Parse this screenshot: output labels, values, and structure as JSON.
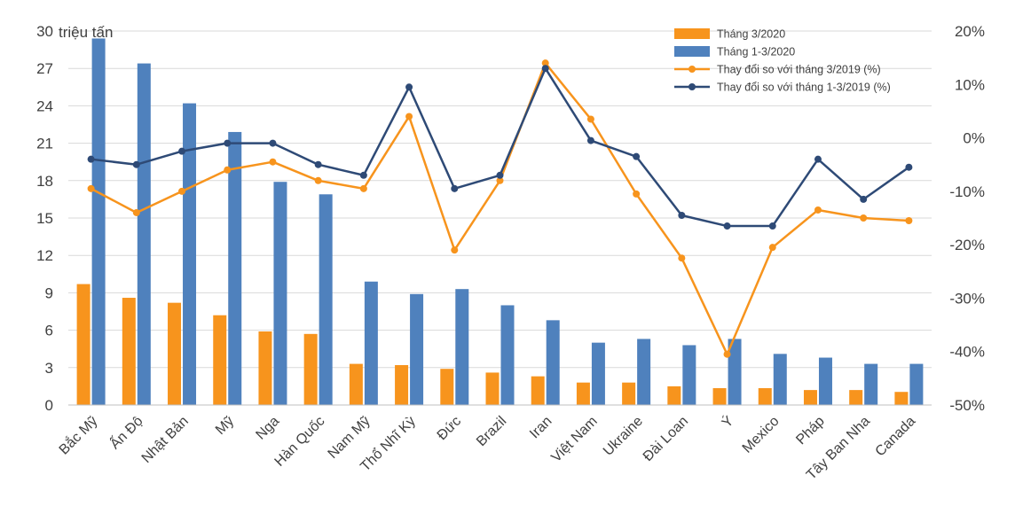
{
  "chart_data": {
    "type": "bar",
    "title": "",
    "y_unit_label": "triệu tấn",
    "categories": [
      "Bắc Mỹ",
      "Ấn Độ",
      "Nhật Bản",
      "Mỹ",
      "Nga",
      "Hàn Quốc",
      "Nam Mỹ",
      "Thổ Nhĩ Kỳ",
      "Đức",
      "Brazil",
      "Iran",
      "Việt Nam",
      "Ukraine",
      "Đài Loan",
      "Ý",
      "Mexico",
      "Pháp",
      "Tây Ban Nha",
      "Canada"
    ],
    "y_left": {
      "min": 0,
      "max": 30,
      "ticks": [
        0,
        3,
        6,
        9,
        12,
        15,
        18,
        21,
        24,
        27,
        30
      ]
    },
    "y_right": {
      "min": -50,
      "max": 20,
      "ticks": [
        -50,
        -40,
        -30,
        -20,
        -10,
        0,
        10,
        20
      ],
      "tick_labels": [
        "-50%",
        "-40%",
        "-30%",
        "-20%",
        "-10%",
        "0%",
        "10%",
        "20%"
      ]
    },
    "grid": true,
    "legend_position": "top-right",
    "series": [
      {
        "name": "Tháng 3/2020",
        "type": "bar",
        "axis": "left",
        "color": "#f7941d",
        "values": [
          9.7,
          8.6,
          8.2,
          7.2,
          5.9,
          5.7,
          3.3,
          3.2,
          2.9,
          2.6,
          2.3,
          1.8,
          1.8,
          1.5,
          1.35,
          1.35,
          1.2,
          1.2,
          1.05
        ]
      },
      {
        "name": "Tháng 1-3/2020",
        "type": "bar",
        "axis": "left",
        "color": "#4f81bd",
        "values": [
          29.4,
          27.4,
          24.2,
          21.9,
          17.9,
          16.9,
          9.9,
          8.9,
          9.3,
          8.0,
          6.8,
          5.0,
          5.3,
          4.8,
          5.3,
          4.1,
          3.8,
          3.3,
          3.3
        ]
      },
      {
        "name": "Thay đổi so với tháng 3/2019 (%)",
        "type": "line",
        "axis": "right",
        "color": "#f7941d",
        "values": [
          -9.5,
          -14,
          -10,
          -6,
          -4.5,
          -8,
          -9.5,
          4,
          -21,
          -8,
          14,
          3.5,
          -10.5,
          -22.5,
          -40.5,
          -20.5,
          -13.5,
          -15,
          -15.5
        ]
      },
      {
        "name": "Thay đổi so với tháng 1-3/2019 (%)",
        "type": "line",
        "axis": "right",
        "color": "#2e4a76",
        "values": [
          -4,
          -5,
          -2.5,
          -1,
          -1,
          -5,
          -7,
          9.5,
          -9.5,
          -7,
          13,
          -0.5,
          -3.5,
          -14.5,
          -16.5,
          -16.5,
          -4,
          -11.5,
          -5.5
        ]
      }
    ]
  }
}
